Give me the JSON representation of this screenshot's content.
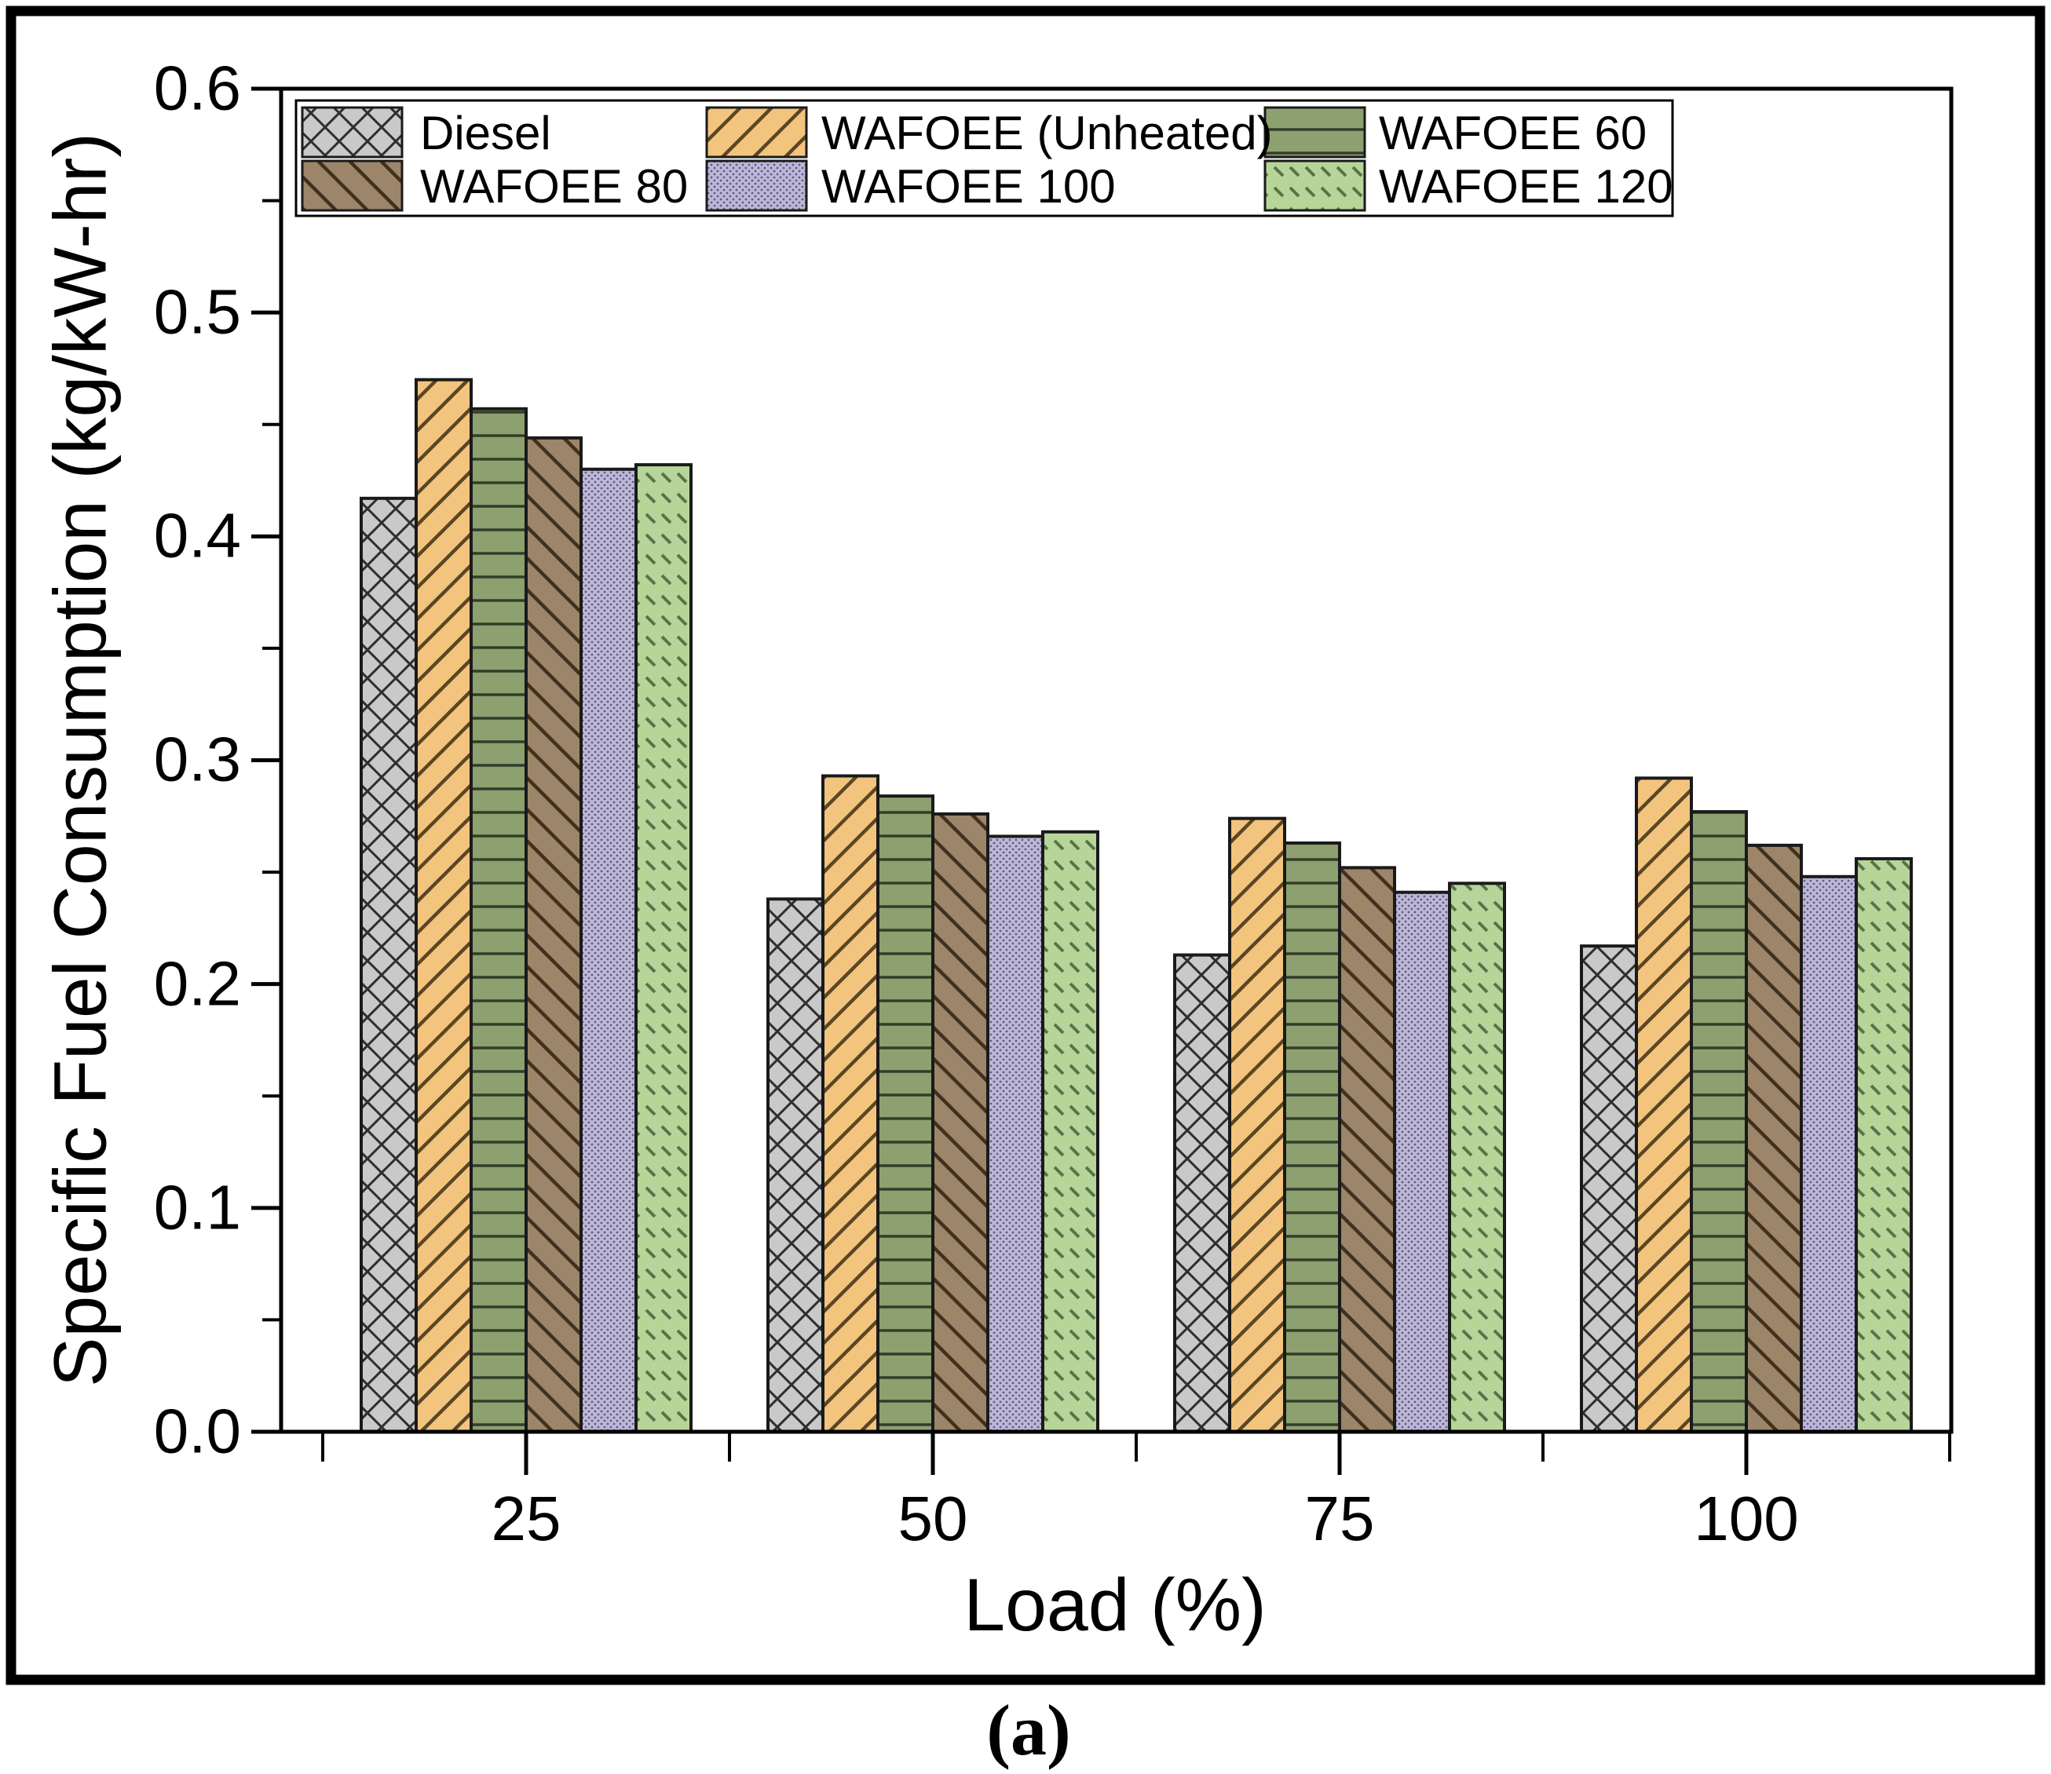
{
  "figure": {
    "caption": "(a)"
  },
  "chart_data": {
    "type": "bar",
    "title": "",
    "xlabel": "Load (%)",
    "ylabel": "Specific Fuel Consumption (kg/kW-hr)",
    "categories": [
      "25",
      "50",
      "75",
      "100"
    ],
    "series": [
      {
        "name": "Diesel",
        "color": "#c9c9c9",
        "hatch_color": "#2e2e2e",
        "pattern": "cross-diagonal",
        "values": [
          0.417,
          0.238,
          0.213,
          0.217
        ]
      },
      {
        "name": "WAFOEE (Unheated)",
        "color": "#f2c47e",
        "hatch_color": "#5a4622",
        "pattern": "diagonal-up",
        "values": [
          0.47,
          0.293,
          0.274,
          0.292
        ]
      },
      {
        "name": "WAFOEE 60",
        "color": "#8da06f",
        "hatch_color": "#333d2a",
        "pattern": "horizontal",
        "values": [
          0.457,
          0.284,
          0.263,
          0.277
        ]
      },
      {
        "name": "WAFOEE 80",
        "color": "#9c8568",
        "hatch_color": "#40301f",
        "pattern": "diagonal-down",
        "values": [
          0.444,
          0.276,
          0.252,
          0.262
        ]
      },
      {
        "name": "WAFOEE 100",
        "color": "#bdb8d6",
        "hatch_color": "#5f5a88",
        "pattern": "dots",
        "values": [
          0.43,
          0.266,
          0.241,
          0.248
        ]
      },
      {
        "name": "WAFOEE 120",
        "color": "#b7d599",
        "hatch_color": "#56744a",
        "pattern": "dash-rows",
        "values": [
          0.432,
          0.268,
          0.245,
          0.256
        ]
      }
    ],
    "ylim": [
      0.0,
      0.6
    ],
    "yticks": [
      0.0,
      0.1,
      0.2,
      0.3,
      0.4,
      0.5,
      0.6
    ],
    "ytick_labels": [
      "0.0",
      "0.1",
      "0.2",
      "0.3",
      "0.4",
      "0.5",
      "0.6"
    ],
    "grid": false,
    "legend_position": "top-left-inside",
    "legend_columns": 3
  }
}
